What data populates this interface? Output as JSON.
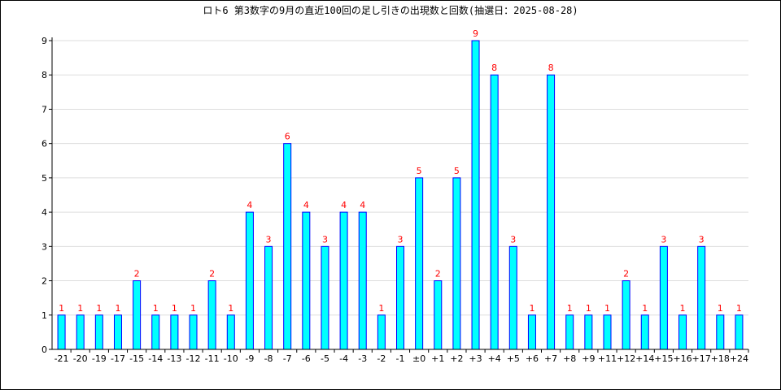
{
  "title": "ロト6 第3数字の9月の直近100回の足し引きの出現数と回数(抽選日：2025-08-28)",
  "chart_data": {
    "type": "bar",
    "title": "ロト6 第3数字の9月の直近100回の足し引きの出現数と回数(抽選日：2025-08-28)",
    "xlabel": "",
    "ylabel": "",
    "ylim": [
      0,
      9
    ],
    "yticks": [
      "0",
      "1",
      "2",
      "3",
      "4",
      "5",
      "6",
      "7",
      "8",
      "9"
    ],
    "grid": true,
    "categories": [
      "-21",
      "-20",
      "-19",
      "-17",
      "-15",
      "-14",
      "-13",
      "-12",
      "-11",
      "-10",
      "-9",
      "-8",
      "-7",
      "-6",
      "-5",
      "-4",
      "-3",
      "-2",
      "-1",
      "±0",
      "+1",
      "+2",
      "+3",
      "+4",
      "+5",
      "+6",
      "+7",
      "+8",
      "+9",
      "+11",
      "+12",
      "+14",
      "+15",
      "+16",
      "+17",
      "+18",
      "+24"
    ],
    "values": [
      1,
      1,
      1,
      1,
      2,
      1,
      1,
      1,
      2,
      1,
      4,
      3,
      6,
      4,
      3,
      4,
      4,
      1,
      3,
      5,
      2,
      5,
      9,
      8,
      3,
      1,
      8,
      1,
      1,
      1,
      2,
      1,
      3,
      1,
      3,
      1,
      1
    ],
    "colors": {
      "bar_fill": "#00ffff",
      "bar_stroke": "#0000ff",
      "label": "#ff0000",
      "grid": "#dddddd",
      "axis": "#000000"
    }
  }
}
